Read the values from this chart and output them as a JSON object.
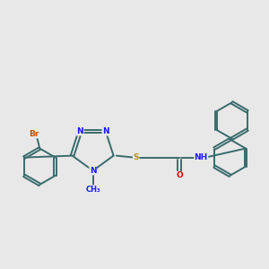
{
  "bg_color": "#e8e8e8",
  "bond_color": "#3a6b6b",
  "bond_width": 1.4,
  "atom_colors": {
    "N": "#1a1aff",
    "S": "#b8960a",
    "O": "#dd0000",
    "Br": "#bb5500",
    "H": "#3a6b6b",
    "C": "#3a6b6b"
  },
  "font_size": 6.5,
  "fig_size": [
    3.0,
    3.0
  ],
  "dpi": 100
}
